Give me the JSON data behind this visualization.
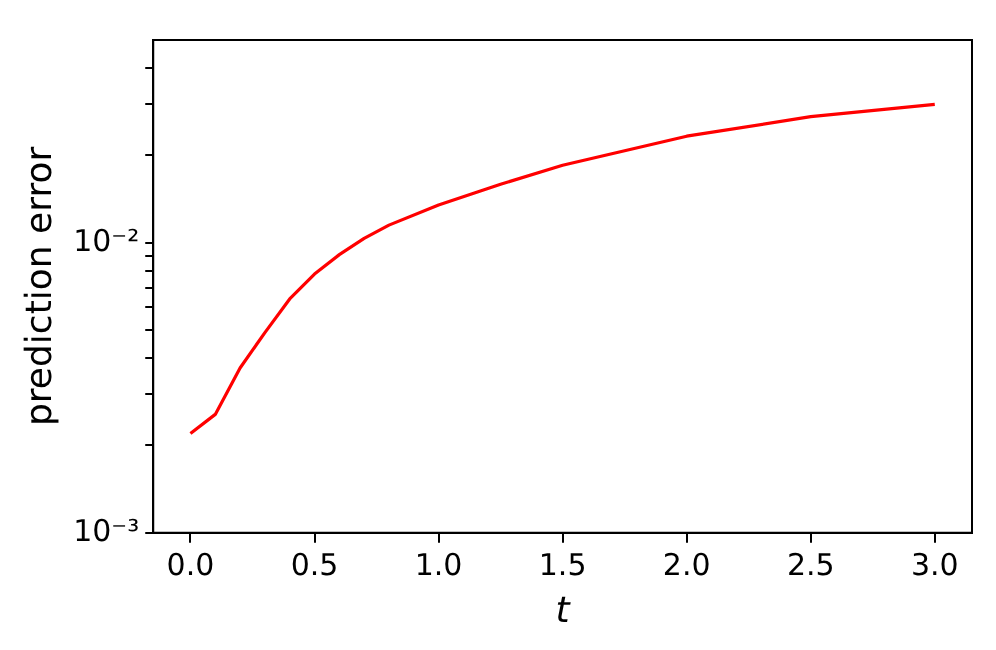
{
  "chart_data": {
    "type": "line",
    "xlabel": "t",
    "ylabel": "prediction error",
    "x": [
      0,
      0.1,
      0.2,
      0.3,
      0.4,
      0.5,
      0.6,
      0.7,
      0.8,
      1.0,
      1.25,
      1.5,
      2.0,
      2.5,
      3.0
    ],
    "series": [
      {
        "color": "#ff0000",
        "values": [
          0.0022,
          0.00256,
          0.0037,
          0.0049,
          0.0064,
          0.0078,
          0.0091,
          0.01035,
          0.0115,
          0.0135,
          0.0159,
          0.0185,
          0.0233,
          0.0272,
          0.03
        ]
      }
    ],
    "log": "y",
    "xlim": [
      -0.15,
      3.15
    ],
    "xticks": [
      {
        "value": 0,
        "label": "0.0"
      },
      {
        "value": 0.5,
        "label": "0.5"
      },
      {
        "value": 1,
        "label": "1.0"
      },
      {
        "value": 1.5,
        "label": "1.5"
      },
      {
        "value": 2,
        "label": "2.0"
      },
      {
        "value": 2.5,
        "label": "2.5"
      },
      {
        "value": 3,
        "label": "3.0"
      }
    ],
    "ylim": [
      0.001,
      0.05
    ],
    "yticks": [
      {
        "value": 0.001,
        "label": "10⁻³"
      },
      {
        "value": 0.002,
        "label": null
      },
      {
        "value": 0.003,
        "label": null
      },
      {
        "value": 0.004,
        "label": null
      },
      {
        "value": 0.005,
        "label": null
      },
      {
        "value": 0.006,
        "label": null
      },
      {
        "value": 0.007,
        "label": null
      },
      {
        "value": 0.008,
        "label": null
      },
      {
        "value": 0.009,
        "label": null
      },
      {
        "value": 0.01,
        "label": "10⁻²"
      },
      {
        "value": 0.02,
        "label": null
      },
      {
        "value": 0.03,
        "label": null
      },
      {
        "value": 0.04,
        "label": null
      }
    ],
    "grid": false,
    "legend": false,
    "marker": "none",
    "line_style": "solid"
  }
}
